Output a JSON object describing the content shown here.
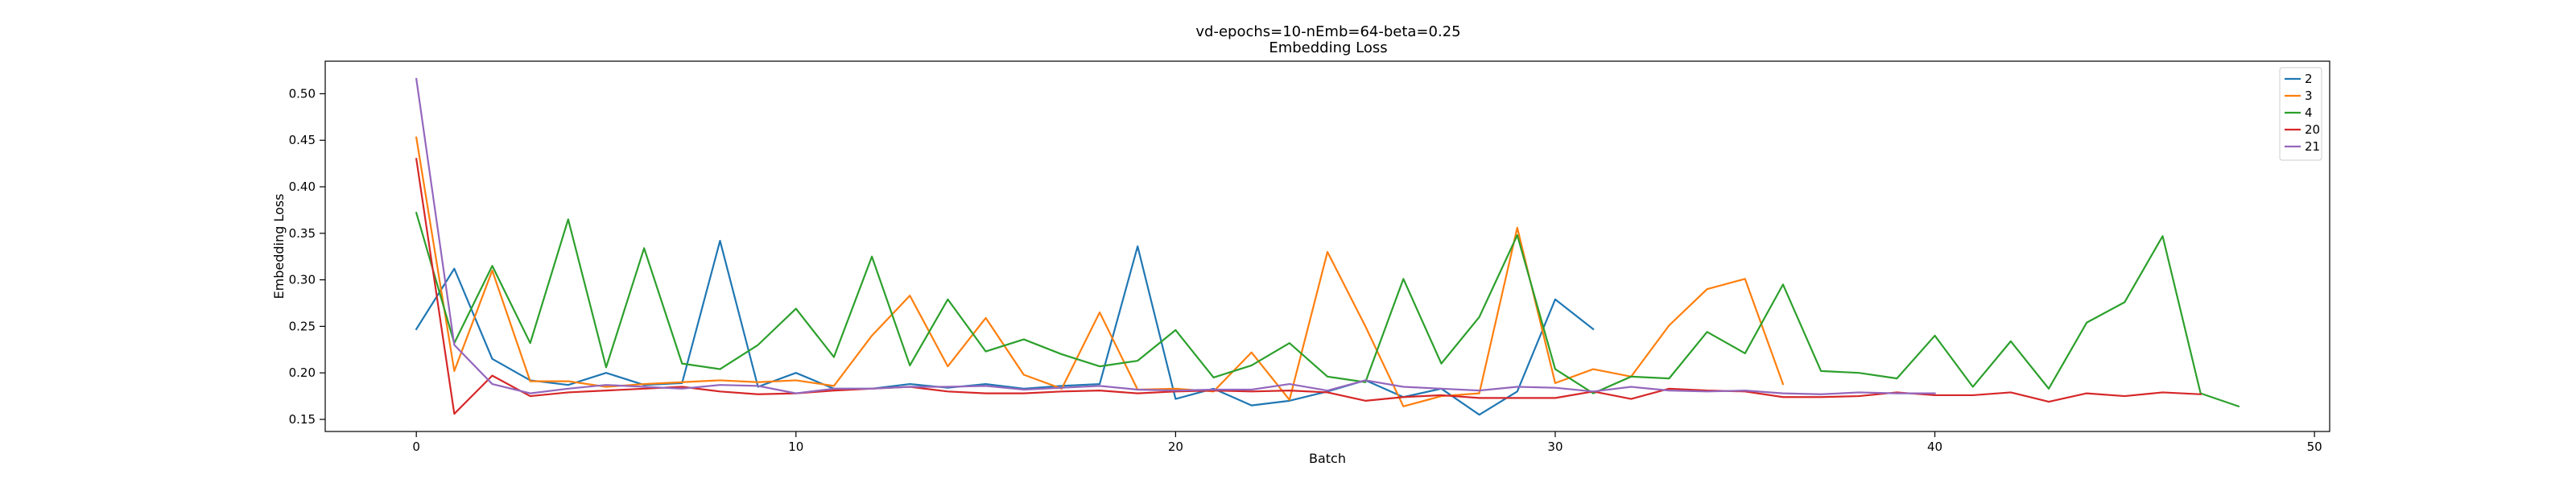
{
  "chart_data": {
    "type": "line",
    "title": "vd-epochs=10-nEmb=64-beta=0.25",
    "subtitle": "Embedding Loss",
    "xlabel": "Batch",
    "ylabel": "Embedding Loss",
    "xlim": [
      -2.4,
      50.4
    ],
    "ylim": [
      0.137,
      0.535
    ],
    "xticks": [
      0,
      10,
      20,
      30,
      40,
      50
    ],
    "yticks": [
      0.15,
      0.2,
      0.25,
      0.3,
      0.35,
      0.4,
      0.45,
      0.5
    ],
    "ytick_labels": [
      "0.15",
      "0.20",
      "0.25",
      "0.30",
      "0.35",
      "0.40",
      "0.45",
      "0.50"
    ],
    "grid": false,
    "legend_position": "top-right",
    "series": [
      {
        "name": "2",
        "color": "#1f77b4",
        "values": [
          0.247,
          0.312,
          0.215,
          0.192,
          0.187,
          0.2,
          0.187,
          0.189,
          0.342,
          0.185,
          0.2,
          0.183,
          0.183,
          0.188,
          0.184,
          0.188,
          0.183,
          0.186,
          0.188,
          0.336,
          0.172,
          0.183,
          0.165,
          0.17,
          0.18,
          0.192,
          0.174,
          0.183,
          0.155,
          0.18,
          0.279,
          0.247
        ]
      },
      {
        "name": "3",
        "color": "#ff7f0e",
        "values": [
          0.453,
          0.202,
          0.31,
          0.191,
          0.191,
          0.185,
          0.188,
          0.19,
          0.192,
          0.19,
          0.192,
          0.186,
          0.24,
          0.283,
          0.207,
          0.259,
          0.198,
          0.183,
          0.265,
          0.182,
          0.183,
          0.18,
          0.222,
          0.171,
          0.33,
          0.25,
          0.164,
          0.175,
          0.178,
          0.356,
          0.189,
          0.204,
          0.196,
          0.251,
          0.29,
          0.301,
          0.188
        ]
      },
      {
        "name": "4",
        "color": "#2ca02c",
        "values": [
          0.372,
          0.232,
          0.315,
          0.232,
          0.365,
          0.206,
          0.334,
          0.21,
          0.204,
          0.23,
          0.269,
          0.217,
          0.325,
          0.208,
          0.279,
          0.223,
          0.236,
          0.22,
          0.207,
          0.213,
          0.246,
          0.195,
          0.208,
          0.232,
          0.196,
          0.19,
          0.301,
          0.21,
          0.26,
          0.348,
          0.204,
          0.178,
          0.196,
          0.194,
          0.244,
          0.221,
          0.295,
          0.202,
          0.2,
          0.194,
          0.24,
          0.185,
          0.234,
          0.183,
          0.254,
          0.276,
          0.347,
          0.178,
          0.164
        ]
      },
      {
        "name": "20",
        "color": "#d62728",
        "values": [
          0.43,
          0.156,
          0.197,
          0.175,
          0.179,
          0.181,
          0.183,
          0.185,
          0.18,
          0.177,
          0.178,
          0.181,
          0.183,
          0.185,
          0.18,
          0.178,
          0.178,
          0.18,
          0.181,
          0.178,
          0.18,
          0.181,
          0.18,
          0.181,
          0.179,
          0.17,
          0.174,
          0.176,
          0.173,
          0.173,
          0.173,
          0.18,
          0.172,
          0.183,
          0.181,
          0.18,
          0.174,
          0.174,
          0.175,
          0.179,
          0.176,
          0.176,
          0.179,
          0.169,
          0.178,
          0.175,
          0.179,
          0.177
        ]
      },
      {
        "name": "21",
        "color": "#9467bd",
        "values": [
          0.516,
          0.23,
          0.188,
          0.178,
          0.183,
          0.187,
          0.185,
          0.183,
          0.187,
          0.186,
          0.178,
          0.183,
          0.183,
          0.185,
          0.185,
          0.186,
          0.182,
          0.184,
          0.186,
          0.182,
          0.181,
          0.182,
          0.182,
          0.188,
          0.181,
          0.192,
          0.185,
          0.183,
          0.181,
          0.185,
          0.184,
          0.18,
          0.185,
          0.181,
          0.18,
          0.181,
          0.178,
          0.177,
          0.179,
          0.178,
          0.178
        ]
      }
    ]
  }
}
